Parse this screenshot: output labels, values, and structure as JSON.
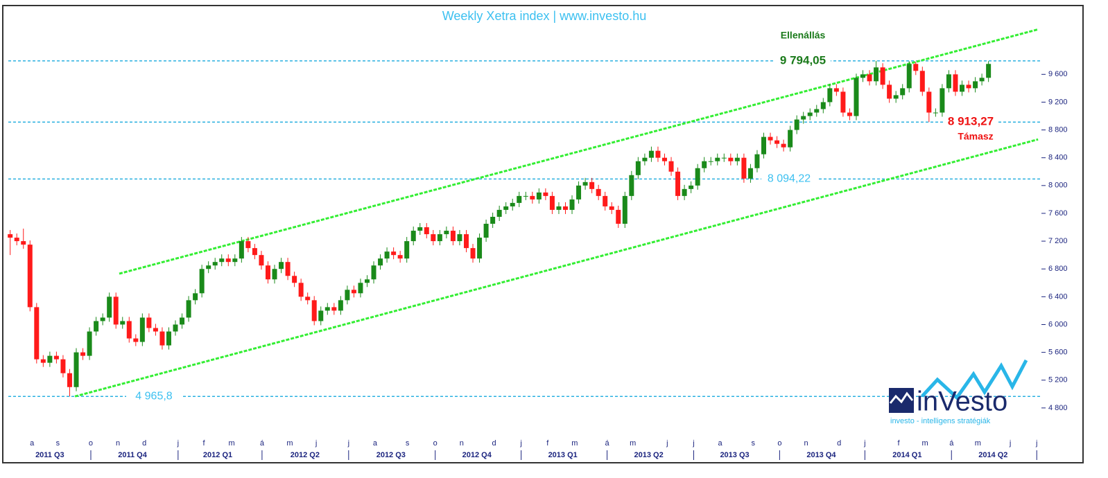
{
  "chart_data": {
    "type": "candlestick",
    "title": "Weekly Xetra index | www.investo.hu",
    "resistance_label": "Ellenállás",
    "support_label": "Támasz",
    "levels": [
      {
        "value": 9794.05,
        "label": "9 794,05"
      },
      {
        "value": 8913.27,
        "label": "8 913,27"
      },
      {
        "value": 8094.22,
        "label": "8 094,22"
      },
      {
        "value": 4965.8,
        "label": "4 965,8"
      }
    ],
    "trendlines": [
      {
        "x": [
          16.5,
          155.5
        ],
        "y": [
          6732,
          10247
        ]
      },
      {
        "x": [
          9.8,
          155.5
        ],
        "y": [
          4965.8,
          8664
        ]
      }
    ],
    "up_color": "#1a8a1a",
    "down_color": "#ff1a1a",
    "level_color": "#2ab0e0",
    "trend_color": "#33ee33",
    "ylim": [
      4390,
      10570
    ],
    "xlim": [
      -0.7,
      155.8
    ],
    "yticks": [
      {
        "value": 4800,
        "label": "4 800"
      },
      {
        "value": 5200,
        "label": "5 200"
      },
      {
        "value": 5600,
        "label": "5 600"
      },
      {
        "value": 6000,
        "label": "6 000"
      },
      {
        "value": 6400,
        "label": "6 400"
      },
      {
        "value": 6800,
        "label": "6 800"
      },
      {
        "value": 7200,
        "label": "7 200"
      },
      {
        "value": 7600,
        "label": "7 600"
      },
      {
        "value": 8000,
        "label": "8 000"
      },
      {
        "value": 8400,
        "label": "8 400"
      },
      {
        "value": 8800,
        "label": "8 800"
      },
      {
        "value": 9200,
        "label": "9 200"
      },
      {
        "value": 9600,
        "label": "9 600"
      }
    ],
    "months": [
      {
        "value": 3.3,
        "label": "a"
      },
      {
        "value": 7.2,
        "label": "s"
      },
      {
        "value": 12.2,
        "label": "o"
      },
      {
        "value": 16.3,
        "label": "n"
      },
      {
        "value": 20.3,
        "label": "d"
      },
      {
        "value": 25.4,
        "label": "j"
      },
      {
        "value": 29.3,
        "label": "f"
      },
      {
        "value": 33.5,
        "label": "m"
      },
      {
        "value": 38.1,
        "label": "á"
      },
      {
        "value": 42.3,
        "label": "m"
      },
      {
        "value": 46.3,
        "label": "j"
      },
      {
        "value": 51.2,
        "label": "j"
      },
      {
        "value": 55.2,
        "label": "a"
      },
      {
        "value": 60.1,
        "label": "s"
      },
      {
        "value": 64.3,
        "label": "o"
      },
      {
        "value": 68.3,
        "label": "n"
      },
      {
        "value": 73.2,
        "label": "d"
      },
      {
        "value": 77.3,
        "label": "j"
      },
      {
        "value": 81.3,
        "label": "f"
      },
      {
        "value": 85.4,
        "label": "m"
      },
      {
        "value": 90.3,
        "label": "á"
      },
      {
        "value": 94.2,
        "label": "m"
      },
      {
        "value": 99.4,
        "label": "j"
      },
      {
        "value": 103.4,
        "label": "j"
      },
      {
        "value": 107.4,
        "label": "a"
      },
      {
        "value": 112.4,
        "label": "s"
      },
      {
        "value": 116.4,
        "label": "o"
      },
      {
        "value": 120.4,
        "label": "n"
      },
      {
        "value": 125.4,
        "label": "d"
      },
      {
        "value": 129.3,
        "label": "j"
      },
      {
        "value": 134.4,
        "label": "f"
      },
      {
        "value": 138.4,
        "label": "m"
      },
      {
        "value": 142.4,
        "label": "á"
      },
      {
        "value": 146.4,
        "label": "m"
      },
      {
        "value": 151.3,
        "label": "j"
      },
      {
        "value": 155.3,
        "label": "j"
      }
    ],
    "quarter_bounds": [
      12.2,
      25.4,
      38.1,
      51.2,
      64.3,
      77.3,
      90.3,
      103.4,
      116.4,
      129.3,
      142.4,
      155.3
    ],
    "quarters": [
      {
        "value": 6.0,
        "label": "2011 Q3"
      },
      {
        "value": 18.5,
        "label": "2011 Q4"
      },
      {
        "value": 31.4,
        "label": "2012 Q1"
      },
      {
        "value": 44.6,
        "label": "2012 Q2"
      },
      {
        "value": 57.6,
        "label": "2012 Q3"
      },
      {
        "value": 70.6,
        "label": "2012 Q4"
      },
      {
        "value": 83.6,
        "label": "2013 Q1"
      },
      {
        "value": 96.6,
        "label": "2013 Q2"
      },
      {
        "value": 109.6,
        "label": "2013 Q3"
      },
      {
        "value": 122.7,
        "label": "2013 Q4"
      },
      {
        "value": 135.7,
        "label": "2014 Q1"
      },
      {
        "value": 148.7,
        "label": "2014 Q2"
      }
    ],
    "ohlc": [
      [
        7300,
        7360,
        7000,
        7250
      ],
      [
        7250,
        7310,
        7140,
        7200
      ],
      [
        7200,
        7380,
        7090,
        7150
      ],
      [
        7150,
        7210,
        6190,
        6250
      ],
      [
        6250,
        6310,
        5440,
        5500
      ],
      [
        5500,
        5560,
        5390,
        5450
      ],
      [
        5450,
        5610,
        5390,
        5550
      ],
      [
        5550,
        5610,
        5440,
        5500
      ],
      [
        5500,
        5560,
        5240,
        5300
      ],
      [
        5300,
        5360,
        4966,
        5100
      ],
      [
        5100,
        5660,
        5040,
        5600
      ],
      [
        5600,
        5660,
        5490,
        5550
      ],
      [
        5550,
        5960,
        5490,
        5900
      ],
      [
        5900,
        6110,
        5840,
        6050
      ],
      [
        6050,
        6160,
        5990,
        6100
      ],
      [
        6100,
        6460,
        6040,
        6400
      ],
      [
        6400,
        6460,
        5940,
        6000
      ],
      [
        6000,
        6110,
        5940,
        6050
      ],
      [
        6050,
        6110,
        5740,
        5800
      ],
      [
        5800,
        5860,
        5690,
        5750
      ],
      [
        5750,
        6160,
        5690,
        6100
      ],
      [
        6100,
        6160,
        5890,
        5950
      ],
      [
        5950,
        6010,
        5840,
        5900
      ],
      [
        5900,
        5960,
        5640,
        5700
      ],
      [
        5700,
        5960,
        5640,
        5900
      ],
      [
        5900,
        6060,
        5840,
        6000
      ],
      [
        6000,
        6160,
        5940,
        6100
      ],
      [
        6100,
        6410,
        6040,
        6350
      ],
      [
        6350,
        6510,
        6290,
        6450
      ],
      [
        6450,
        6860,
        6390,
        6800
      ],
      [
        6800,
        6910,
        6740,
        6850
      ],
      [
        6850,
        6960,
        6790,
        6900
      ],
      [
        6900,
        7010,
        6840,
        6950
      ],
      [
        6950,
        7010,
        6840,
        6900
      ],
      [
        6900,
        7010,
        6840,
        6950
      ],
      [
        6950,
        7260,
        6890,
        7200
      ],
      [
        7200,
        7260,
        7040,
        7100
      ],
      [
        7100,
        7160,
        6940,
        7000
      ],
      [
        7000,
        7060,
        6790,
        6850
      ],
      [
        6850,
        6910,
        6590,
        6650
      ],
      [
        6650,
        6860,
        6590,
        6800
      ],
      [
        6800,
        6960,
        6740,
        6900
      ],
      [
        6900,
        6960,
        6640,
        6700
      ],
      [
        6700,
        6760,
        6540,
        6600
      ],
      [
        6600,
        6660,
        6340,
        6400
      ],
      [
        6400,
        6460,
        6290,
        6350
      ],
      [
        6350,
        6410,
        5990,
        6050
      ],
      [
        6050,
        6260,
        5990,
        6200
      ],
      [
        6200,
        6310,
        6140,
        6250
      ],
      [
        6250,
        6310,
        6140,
        6200
      ],
      [
        6200,
        6410,
        6140,
        6350
      ],
      [
        6350,
        6560,
        6290,
        6500
      ],
      [
        6500,
        6560,
        6390,
        6450
      ],
      [
        6450,
        6660,
        6390,
        6600
      ],
      [
        6600,
        6710,
        6540,
        6650
      ],
      [
        6650,
        6910,
        6590,
        6850
      ],
      [
        6850,
        7010,
        6790,
        6950
      ],
      [
        6950,
        7110,
        6890,
        7050
      ],
      [
        7050,
        7110,
        6940,
        7000
      ],
      [
        7000,
        7060,
        6890,
        6950
      ],
      [
        6950,
        7260,
        6890,
        7200
      ],
      [
        7200,
        7410,
        7140,
        7350
      ],
      [
        7350,
        7460,
        7290,
        7400
      ],
      [
        7400,
        7460,
        7240,
        7300
      ],
      [
        7300,
        7360,
        7140,
        7200
      ],
      [
        7200,
        7360,
        7140,
        7300
      ],
      [
        7300,
        7410,
        7240,
        7350
      ],
      [
        7350,
        7410,
        7140,
        7200
      ],
      [
        7200,
        7360,
        7140,
        7300
      ],
      [
        7300,
        7360,
        7040,
        7100
      ],
      [
        7100,
        7160,
        6890,
        6950
      ],
      [
        6950,
        7310,
        6890,
        7250
      ],
      [
        7250,
        7510,
        7190,
        7450
      ],
      [
        7450,
        7610,
        7390,
        7550
      ],
      [
        7550,
        7710,
        7490,
        7650
      ],
      [
        7650,
        7760,
        7590,
        7700
      ],
      [
        7700,
        7810,
        7640,
        7750
      ],
      [
        7750,
        7910,
        7690,
        7850
      ],
      [
        7850,
        7910,
        7790,
        7850
      ],
      [
        7850,
        7910,
        7740,
        7800
      ],
      [
        7800,
        7960,
        7740,
        7900
      ],
      [
        7900,
        7960,
        7790,
        7850
      ],
      [
        7850,
        7910,
        7590,
        7650
      ],
      [
        7650,
        7760,
        7590,
        7700
      ],
      [
        7700,
        7760,
        7590,
        7650
      ],
      [
        7650,
        7860,
        7590,
        7800
      ],
      [
        7800,
        8060,
        7740,
        8000
      ],
      [
        8000,
        8110,
        7940,
        8050
      ],
      [
        8050,
        8110,
        7890,
        7950
      ],
      [
        7950,
        8010,
        7790,
        7850
      ],
      [
        7850,
        7910,
        7640,
        7700
      ],
      [
        7700,
        7760,
        7590,
        7650
      ],
      [
        7650,
        7710,
        7390,
        7450
      ],
      [
        7450,
        7910,
        7390,
        7850
      ],
      [
        7850,
        8210,
        7790,
        8150
      ],
      [
        8150,
        8410,
        8090,
        8350
      ],
      [
        8350,
        8460,
        8290,
        8400
      ],
      [
        8400,
        8560,
        8340,
        8500
      ],
      [
        8500,
        8560,
        8340,
        8400
      ],
      [
        8400,
        8460,
        8290,
        8350
      ],
      [
        8350,
        8410,
        8140,
        8200
      ],
      [
        8200,
        8260,
        7790,
        7850
      ],
      [
        7850,
        8010,
        7790,
        7950
      ],
      [
        7950,
        8060,
        7890,
        8000
      ],
      [
        8000,
        8310,
        7940,
        8250
      ],
      [
        8250,
        8410,
        8190,
        8350
      ],
      [
        8350,
        8410,
        8290,
        8350
      ],
      [
        8350,
        8460,
        8290,
        8400
      ],
      [
        8400,
        8460,
        8340,
        8400
      ],
      [
        8400,
        8460,
        8290,
        8350
      ],
      [
        8350,
        8460,
        8290,
        8400
      ],
      [
        8400,
        8460,
        8040,
        8100
      ],
      [
        8100,
        8310,
        8040,
        8250
      ],
      [
        8250,
        8510,
        8190,
        8450
      ],
      [
        8450,
        8760,
        8390,
        8700
      ],
      [
        8700,
        8760,
        8590,
        8650
      ],
      [
        8650,
        8710,
        8540,
        8600
      ],
      [
        8600,
        8660,
        8490,
        8550
      ],
      [
        8550,
        8860,
        8490,
        8800
      ],
      [
        8800,
        9010,
        8740,
        8950
      ],
      [
        8950,
        9060,
        8890,
        9000
      ],
      [
        9000,
        9110,
        8940,
        9050
      ],
      [
        9050,
        9160,
        8990,
        9100
      ],
      [
        9100,
        9260,
        9040,
        9200
      ],
      [
        9200,
        9460,
        9140,
        9400
      ],
      [
        9400,
        9460,
        9290,
        9350
      ],
      [
        9350,
        9410,
        8990,
        9050
      ],
      [
        9050,
        9110,
        8940,
        9000
      ],
      [
        9000,
        9610,
        8940,
        9550
      ],
      [
        9550,
        9660,
        9490,
        9600
      ],
      [
        9600,
        9660,
        9440,
        9500
      ],
      [
        9500,
        9794,
        9440,
        9700
      ],
      [
        9700,
        9760,
        9390,
        9450
      ],
      [
        9450,
        9510,
        9190,
        9250
      ],
      [
        9250,
        9360,
        9190,
        9300
      ],
      [
        9300,
        9460,
        9240,
        9400
      ],
      [
        9400,
        9790,
        9340,
        9750
      ],
      [
        9750,
        9780,
        9590,
        9650
      ],
      [
        9650,
        9710,
        9290,
        9350
      ],
      [
        9350,
        9410,
        8913,
        9050
      ],
      [
        9050,
        9110,
        8990,
        9050
      ],
      [
        9050,
        9460,
        8990,
        9400
      ],
      [
        9400,
        9660,
        9340,
        9600
      ],
      [
        9600,
        9660,
        9290,
        9350
      ],
      [
        9350,
        9510,
        9290,
        9450
      ],
      [
        9450,
        9510,
        9340,
        9400
      ],
      [
        9400,
        9560,
        9340,
        9500
      ],
      [
        9500,
        9610,
        9440,
        9550
      ],
      [
        9550,
        9790,
        9490,
        9750
      ]
    ]
  },
  "logo": {
    "text": "inVesto",
    "tagline": "investo - intelligens stratégiák"
  }
}
